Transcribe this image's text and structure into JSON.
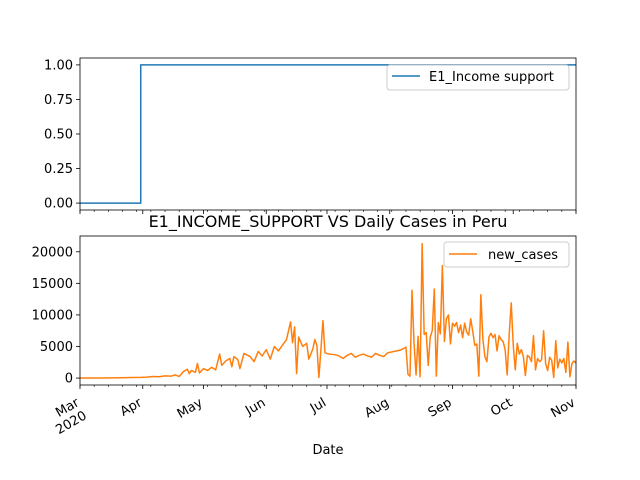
{
  "chart_data": [
    {
      "type": "line",
      "title": "",
      "xlabel": "",
      "ylabel": "",
      "x_range": [
        "2020-03-01",
        "2020-11-01"
      ],
      "ylim": [
        -0.05,
        1.05
      ],
      "yticks": [
        0.0,
        0.25,
        0.5,
        0.75,
        1.0
      ],
      "ytick_labels": [
        "0.00",
        "0.25",
        "0.50",
        "0.75",
        "1.00"
      ],
      "grid": false,
      "legend_position": "top-right",
      "series": [
        {
          "name": "E1_Income support",
          "color": "#1f77b4",
          "step": true,
          "points": [
            [
              "2020-03-01",
              0
            ],
            [
              "2020-03-31",
              0
            ],
            [
              "2020-03-31",
              1
            ],
            [
              "2020-11-01",
              1
            ]
          ]
        }
      ]
    },
    {
      "type": "line",
      "title": "E1_INCOME_SUPPORT VS Daily Cases in Peru",
      "xlabel": "Date",
      "ylabel": "",
      "x_range": [
        "2020-03-01",
        "2020-11-01"
      ],
      "ylim": [
        -1100,
        22500
      ],
      "yticks": [
        0,
        5000,
        10000,
        15000,
        20000
      ],
      "ytick_labels": [
        "0",
        "5000",
        "10000",
        "15000",
        "20000"
      ],
      "grid": false,
      "legend_position": "top-right",
      "series": [
        {
          "name": "new_cases",
          "color": "#ff7f0e",
          "points": [
            [
              "2020-03-01",
              0
            ],
            [
              "2020-03-06",
              0
            ],
            [
              "2020-03-11",
              5
            ],
            [
              "2020-03-16",
              20
            ],
            [
              "2020-03-21",
              40
            ],
            [
              "2020-03-26",
              80
            ],
            [
              "2020-03-31",
              100
            ],
            [
              "2020-04-03",
              150
            ],
            [
              "2020-04-06",
              250
            ],
            [
              "2020-04-09",
              200
            ],
            [
              "2020-04-12",
              350
            ],
            [
              "2020-04-15",
              300
            ],
            [
              "2020-04-17",
              500
            ],
            [
              "2020-04-19",
              250
            ],
            [
              "2020-04-21",
              1000
            ],
            [
              "2020-04-23",
              1400
            ],
            [
              "2020-04-24",
              700
            ],
            [
              "2020-04-25",
              1200
            ],
            [
              "2020-04-27",
              900
            ],
            [
              "2020-04-28",
              2300
            ],
            [
              "2020-04-29",
              800
            ],
            [
              "2020-05-01",
              1500
            ],
            [
              "2020-05-03",
              1200
            ],
            [
              "2020-05-05",
              1700
            ],
            [
              "2020-05-07",
              1300
            ],
            [
              "2020-05-09",
              3800
            ],
            [
              "2020-05-10",
              2000
            ],
            [
              "2020-05-12",
              2700
            ],
            [
              "2020-05-14",
              3100
            ],
            [
              "2020-05-15",
              1800
            ],
            [
              "2020-05-16",
              3400
            ],
            [
              "2020-05-18",
              2900
            ],
            [
              "2020-05-19",
              1500
            ],
            [
              "2020-05-21",
              3900
            ],
            [
              "2020-05-24",
              3400
            ],
            [
              "2020-05-26",
              2600
            ],
            [
              "2020-05-28",
              4200
            ],
            [
              "2020-05-30",
              3500
            ],
            [
              "2020-06-01",
              4500
            ],
            [
              "2020-06-03",
              3000
            ],
            [
              "2020-06-05",
              5000
            ],
            [
              "2020-06-07",
              4300
            ],
            [
              "2020-06-09",
              5200
            ],
            [
              "2020-06-11",
              6100
            ],
            [
              "2020-06-13",
              8900
            ],
            [
              "2020-06-14",
              5600
            ],
            [
              "2020-06-15",
              8100
            ],
            [
              "2020-06-16",
              700
            ],
            [
              "2020-06-17",
              6500
            ],
            [
              "2020-06-19",
              5000
            ],
            [
              "2020-06-21",
              5500
            ],
            [
              "2020-06-22",
              3000
            ],
            [
              "2020-06-24",
              4600
            ],
            [
              "2020-06-25",
              6100
            ],
            [
              "2020-06-26",
              5200
            ],
            [
              "2020-06-27",
              100
            ],
            [
              "2020-06-28",
              4500
            ],
            [
              "2020-06-29",
              9100
            ],
            [
              "2020-06-30",
              4000
            ],
            [
              "2020-07-02",
              3800
            ],
            [
              "2020-07-05",
              3700
            ],
            [
              "2020-07-07",
              3500
            ],
            [
              "2020-07-09",
              3100
            ],
            [
              "2020-07-11",
              3600
            ],
            [
              "2020-07-13",
              3900
            ],
            [
              "2020-07-15",
              3300
            ],
            [
              "2020-07-17",
              3600
            ],
            [
              "2020-07-19",
              3800
            ],
            [
              "2020-07-21",
              3500
            ],
            [
              "2020-07-23",
              3300
            ],
            [
              "2020-07-25",
              3900
            ],
            [
              "2020-07-27",
              3600
            ],
            [
              "2020-07-29",
              3400
            ],
            [
              "2020-07-31",
              4000
            ],
            [
              "2020-08-03",
              4200
            ],
            [
              "2020-08-06",
              4400
            ],
            [
              "2020-08-08",
              4700
            ],
            [
              "2020-08-09",
              4900
            ],
            [
              "2020-08-10",
              600
            ],
            [
              "2020-08-11",
              300
            ],
            [
              "2020-08-12",
              13900
            ],
            [
              "2020-08-13",
              5500
            ],
            [
              "2020-08-14",
              500
            ],
            [
              "2020-08-15",
              6600
            ],
            [
              "2020-08-16",
              200
            ],
            [
              "2020-08-17",
              21300
            ],
            [
              "2020-08-18",
              6900
            ],
            [
              "2020-08-19",
              7200
            ],
            [
              "2020-08-20",
              2000
            ],
            [
              "2020-08-21",
              6500
            ],
            [
              "2020-08-22",
              7500
            ],
            [
              "2020-08-23",
              14100
            ],
            [
              "2020-08-24",
              300
            ],
            [
              "2020-08-25",
              8800
            ],
            [
              "2020-08-26",
              7000
            ],
            [
              "2020-08-27",
              17800
            ],
            [
              "2020-08-28",
              5800
            ],
            [
              "2020-08-29",
              9400
            ],
            [
              "2020-08-30",
              10000
            ],
            [
              "2020-08-31",
              5400
            ],
            [
              "2020-09-01",
              8700
            ],
            [
              "2020-09-02",
              8200
            ],
            [
              "2020-09-03",
              8800
            ],
            [
              "2020-09-04",
              7200
            ],
            [
              "2020-09-05",
              8400
            ],
            [
              "2020-09-06",
              6400
            ],
            [
              "2020-09-07",
              8700
            ],
            [
              "2020-09-08",
              7300
            ],
            [
              "2020-09-09",
              6800
            ],
            [
              "2020-09-10",
              9400
            ],
            [
              "2020-09-11",
              7400
            ],
            [
              "2020-09-12",
              5200
            ],
            [
              "2020-09-13",
              5400
            ],
            [
              "2020-09-14",
              300
            ],
            [
              "2020-09-15",
              13200
            ],
            [
              "2020-09-16",
              6200
            ],
            [
              "2020-09-17",
              3400
            ],
            [
              "2020-09-18",
              2600
            ],
            [
              "2020-09-19",
              6500
            ],
            [
              "2020-09-20",
              7100
            ],
            [
              "2020-09-21",
              6400
            ],
            [
              "2020-09-22",
              6900
            ],
            [
              "2020-09-23",
              4300
            ],
            [
              "2020-09-24",
              6700
            ],
            [
              "2020-09-25",
              6100
            ],
            [
              "2020-09-26",
              5800
            ],
            [
              "2020-09-27",
              4500
            ],
            [
              "2020-09-28",
              500
            ],
            [
              "2020-09-29",
              6900
            ],
            [
              "2020-09-30",
              11900
            ],
            [
              "2020-10-01",
              5200
            ],
            [
              "2020-10-02",
              1300
            ],
            [
              "2020-10-03",
              5500
            ],
            [
              "2020-10-04",
              3800
            ],
            [
              "2020-10-05",
              4500
            ],
            [
              "2020-10-06",
              3400
            ],
            [
              "2020-10-07",
              400
            ],
            [
              "2020-10-08",
              3600
            ],
            [
              "2020-10-09",
              3300
            ],
            [
              "2020-10-10",
              2600
            ],
            [
              "2020-10-11",
              6700
            ],
            [
              "2020-10-12",
              1300
            ],
            [
              "2020-10-13",
              3100
            ],
            [
              "2020-10-14",
              2600
            ],
            [
              "2020-10-15",
              2900
            ],
            [
              "2020-10-16",
              7500
            ],
            [
              "2020-10-17",
              2300
            ],
            [
              "2020-10-18",
              1200
            ],
            [
              "2020-10-19",
              3300
            ],
            [
              "2020-10-20",
              2800
            ],
            [
              "2020-10-21",
              100
            ],
            [
              "2020-10-22",
              5900
            ],
            [
              "2020-10-23",
              1600
            ],
            [
              "2020-10-24",
              3000
            ],
            [
              "2020-10-25",
              2400
            ],
            [
              "2020-10-26",
              3100
            ],
            [
              "2020-10-27",
              900
            ],
            [
              "2020-10-28",
              5700
            ],
            [
              "2020-10-29",
              200
            ],
            [
              "2020-10-30",
              2300
            ],
            [
              "2020-10-31",
              2700
            ],
            [
              "2020-11-01",
              2400
            ]
          ]
        }
      ]
    }
  ],
  "shared_x_axis": {
    "label": "Date",
    "major_ticks": [
      "2020-03-01",
      "2020-04-01",
      "2020-05-01",
      "2020-06-01",
      "2020-07-01",
      "2020-08-01",
      "2020-09-01",
      "2020-10-01",
      "2020-11-01"
    ],
    "major_tick_labels": [
      "Mar\n2020",
      "Apr",
      "May",
      "Jun",
      "Jul",
      "Aug",
      "Sep",
      "Oct",
      "Nov"
    ],
    "minor_tick_spacing": "weekly"
  }
}
